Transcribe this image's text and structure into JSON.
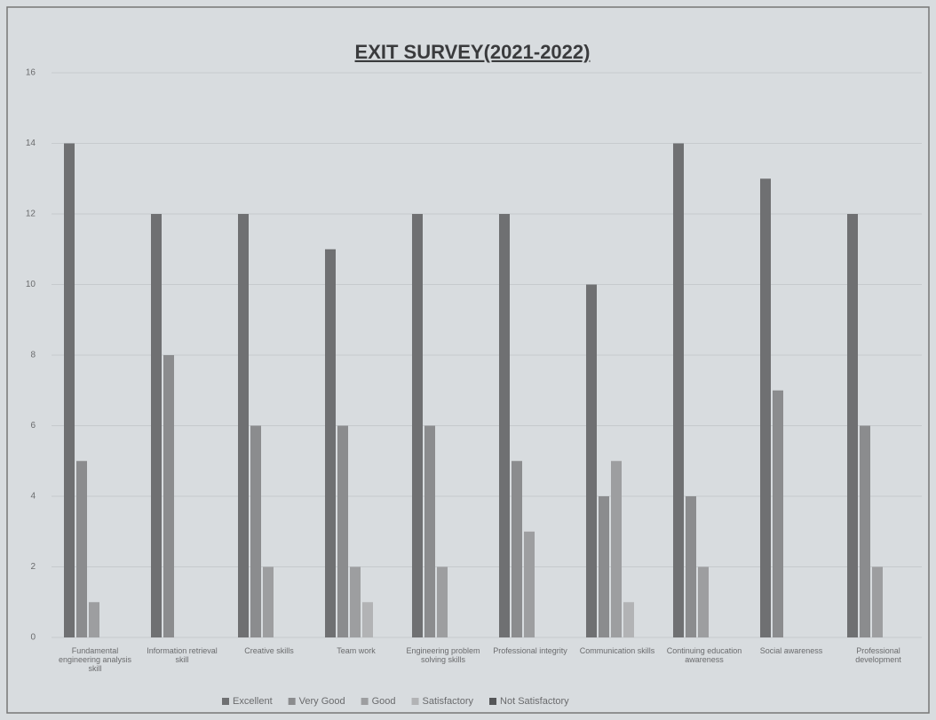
{
  "chart_data": {
    "type": "bar",
    "title": "EXIT SURVEY(2021-2022)",
    "categories": [
      "Fundamental engineering analysis skill",
      "Information retrieval skill",
      "Creative skills",
      "Team work",
      "Engineering problem solving skills",
      "Professional integrity",
      "Communication skills",
      "Continuing education awareness",
      "Social awareness",
      "Professional development"
    ],
    "series": [
      {
        "name": "Excellent",
        "color": "#6f7072",
        "values": [
          14,
          12,
          12,
          11,
          12,
          12,
          10,
          14,
          13,
          12
        ]
      },
      {
        "name": "Very Good",
        "color": "#8b8c8e",
        "values": [
          5,
          8,
          6,
          6,
          6,
          5,
          4,
          4,
          7,
          6
        ]
      },
      {
        "name": "Good",
        "color": "#9d9ea0",
        "values": [
          1,
          0,
          2,
          2,
          2,
          3,
          5,
          2,
          0,
          2
        ]
      },
      {
        "name": "Satisfactory",
        "color": "#b2b3b5",
        "values": [
          0,
          0,
          0,
          1,
          0,
          0,
          1,
          0,
          0,
          0
        ]
      },
      {
        "name": "Not Satisfactory",
        "color": "#555658",
        "values": [
          0,
          0,
          0,
          0,
          0,
          0,
          0,
          0,
          0,
          0
        ]
      }
    ],
    "ylim": [
      0,
      16
    ],
    "yticks": [
      0,
      2,
      4,
      6,
      8,
      10,
      12,
      14,
      16
    ],
    "grid": true,
    "legend": "bottom"
  }
}
